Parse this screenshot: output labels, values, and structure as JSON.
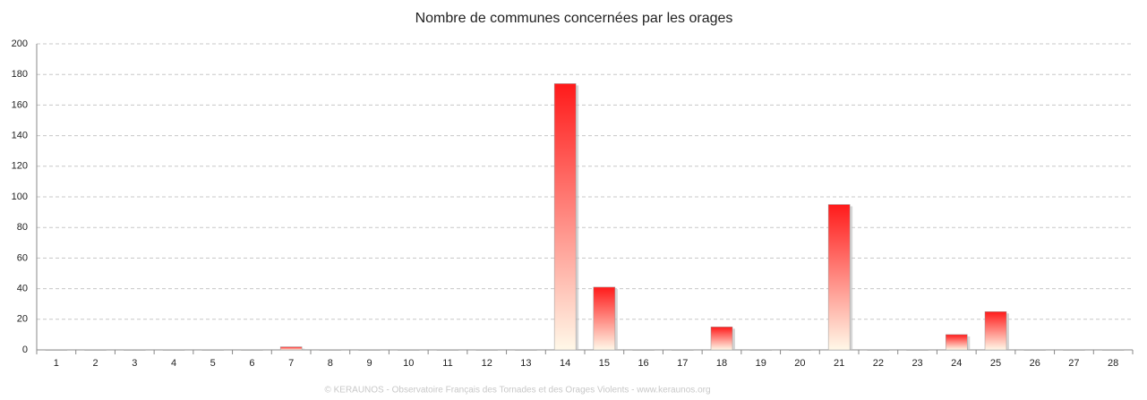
{
  "chart_data": {
    "type": "bar",
    "title": "Nombre de communes concernées par les orages",
    "categories": [
      "1",
      "2",
      "3",
      "4",
      "5",
      "6",
      "7",
      "8",
      "9",
      "10",
      "11",
      "12",
      "13",
      "14",
      "15",
      "16",
      "17",
      "18",
      "19",
      "20",
      "21",
      "22",
      "23",
      "24",
      "25",
      "26",
      "27",
      "28"
    ],
    "values": [
      0,
      0,
      0,
      0,
      0,
      0,
      2,
      0,
      0,
      0,
      0,
      0,
      0,
      174,
      41,
      0,
      0,
      15,
      0,
      0,
      95,
      0,
      0,
      10,
      25,
      0,
      0,
      0
    ],
    "color": "#ff1a1a",
    "ylim": [
      0,
      200
    ],
    "yticks": [
      0,
      20,
      40,
      60,
      80,
      100,
      120,
      140,
      160,
      180,
      200
    ],
    "grid": true,
    "footer": "© KERAUNOS - Observatoire Français des Tornades et des Orages Violents - www.keraunos.org"
  }
}
